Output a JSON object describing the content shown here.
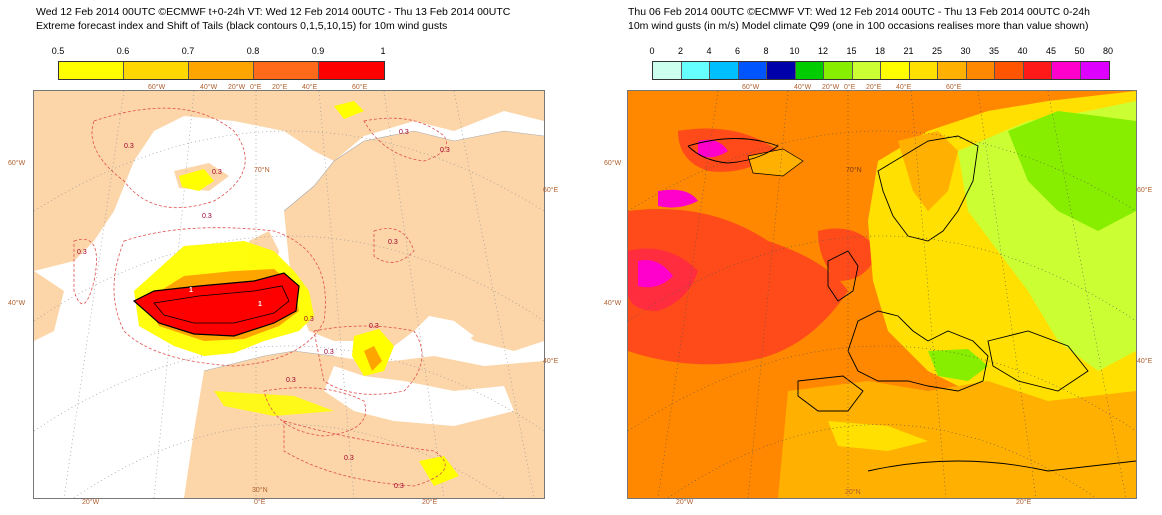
{
  "left": {
    "title_line1": "Wed 12 Feb 2014 00UTC ©ECMWF t+0-24h  VT: Wed 12 Feb 2014 00UTC - Thu 13 Feb 2014 00UTC",
    "title_line2": "Extreme forecast index and Shift of Tails (black contours 0,1,5,10,15) for 10m wind gusts",
    "legend": {
      "ticks": [
        "0.5",
        "0.6",
        "0.7",
        "0.8",
        "0.9",
        "1"
      ],
      "colors": [
        "#ffff00",
        "#ffd700",
        "#ffa500",
        "#ff6a1a",
        "#ff0000"
      ]
    },
    "coords": {
      "top": [
        "60°W",
        "40°W",
        "20°W",
        "0°E",
        "20°E",
        "40°E",
        "60°E"
      ],
      "left": [
        "60°W",
        "40°W"
      ],
      "right": [
        "60°E",
        "40°E"
      ],
      "bottom": [
        "20°W",
        "0°E",
        "20°E"
      ],
      "inner": [
        "70°N",
        "30°N"
      ]
    },
    "contour_labels": [
      "0.3",
      "0.3",
      "0.3",
      "0.3",
      "0.3",
      "0.3",
      "0.3",
      "0.3",
      "0.3",
      "0.3",
      "0.3",
      "0.3",
      "0.3"
    ],
    "sot_labels": [
      "1",
      "1"
    ]
  },
  "right": {
    "title_line1": "Thu 06 Feb 2014 00UTC ©ECMWF VT: Wed 12 Feb 2014 00UTC - Thu 13 Feb 2014 00UTC   0-24h",
    "title_line2": "10m wind gusts (in m/s)  Model climate Q99 (one in 100 occasions realises more than value shown)",
    "legend": {
      "ticks": [
        "0",
        "2",
        "4",
        "6",
        "8",
        "10",
        "12",
        "15",
        "18",
        "21",
        "25",
        "30",
        "35",
        "40",
        "45",
        "50",
        "80"
      ],
      "colors": [
        "#ccffee",
        "#66ffff",
        "#00bfff",
        "#0055ff",
        "#0000aa",
        "#00cc00",
        "#88ee00",
        "#ccff33",
        "#ffff00",
        "#ffe000",
        "#ffb000",
        "#ff8800",
        "#ff5500",
        "#ff1a1a",
        "#ff00cc",
        "#dd00ff",
        "#660099"
      ]
    },
    "coords": {
      "top": [
        "60°W",
        "40°W",
        "20°W",
        "0°E",
        "20°E",
        "40°E",
        "60°E"
      ],
      "left": [
        "60°W",
        "40°W"
      ],
      "right": [
        "60°E",
        "40°E"
      ],
      "bottom": [
        "20°W",
        "20°N",
        "20°E"
      ],
      "inner": [
        "70°N"
      ]
    }
  }
}
